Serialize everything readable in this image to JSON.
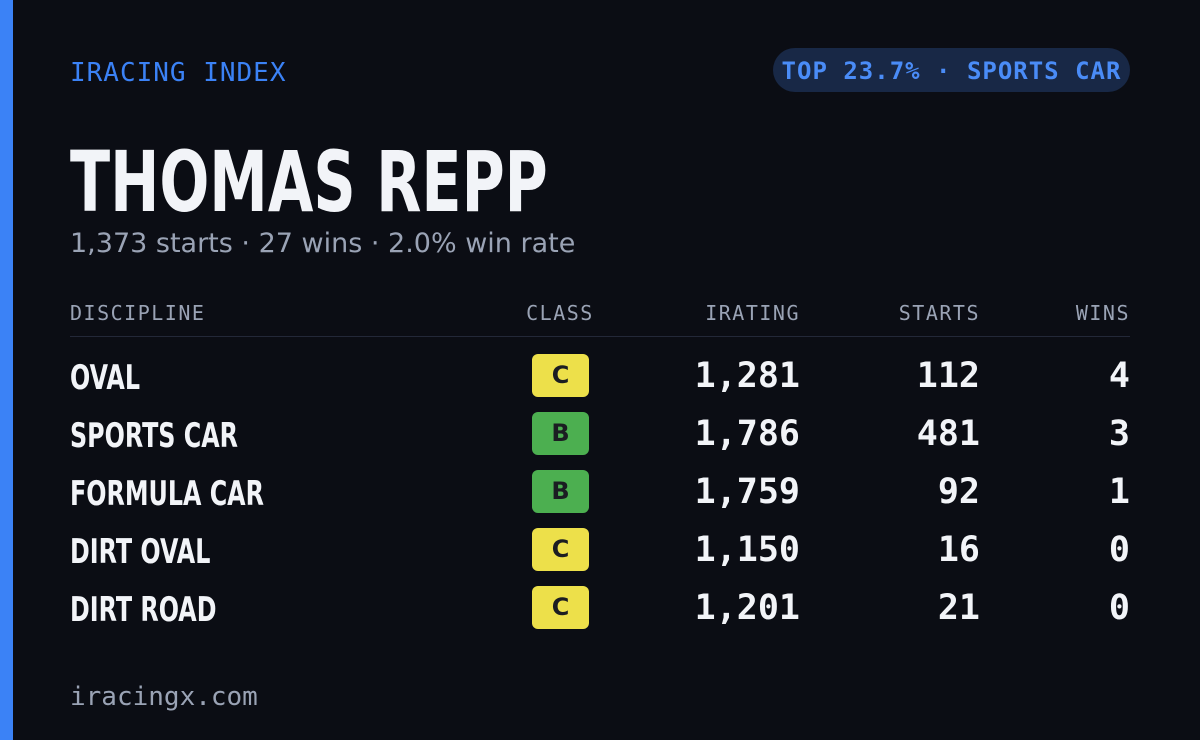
{
  "header": {
    "brand": "IRACING INDEX",
    "badge": "TOP 23.7% · SPORTS CAR",
    "name": "THOMAS REPP",
    "summary": "1,373 starts · 27 wins · 2.0% win rate"
  },
  "table": {
    "columns": [
      "DISCIPLINE",
      "CLASS",
      "IRATING",
      "STARTS",
      "WINS"
    ],
    "rows": [
      {
        "discipline": "OVAL",
        "class": "C",
        "class_color": "#ede04a",
        "irating": "1,281",
        "starts": "112",
        "wins": "4"
      },
      {
        "discipline": "SPORTS CAR",
        "class": "B",
        "class_color": "#4caf50",
        "irating": "1,786",
        "starts": "481",
        "wins": "3"
      },
      {
        "discipline": "FORMULA CAR",
        "class": "B",
        "class_color": "#4caf50",
        "irating": "1,759",
        "starts": "92",
        "wins": "1"
      },
      {
        "discipline": "DIRT OVAL",
        "class": "C",
        "class_color": "#ede04a",
        "irating": "1,150",
        "starts": "16",
        "wins": "0"
      },
      {
        "discipline": "DIRT ROAD",
        "class": "C",
        "class_color": "#ede04a",
        "irating": "1,201",
        "starts": "21",
        "wins": "0"
      }
    ]
  },
  "footer": {
    "site": "iracingx.com"
  }
}
